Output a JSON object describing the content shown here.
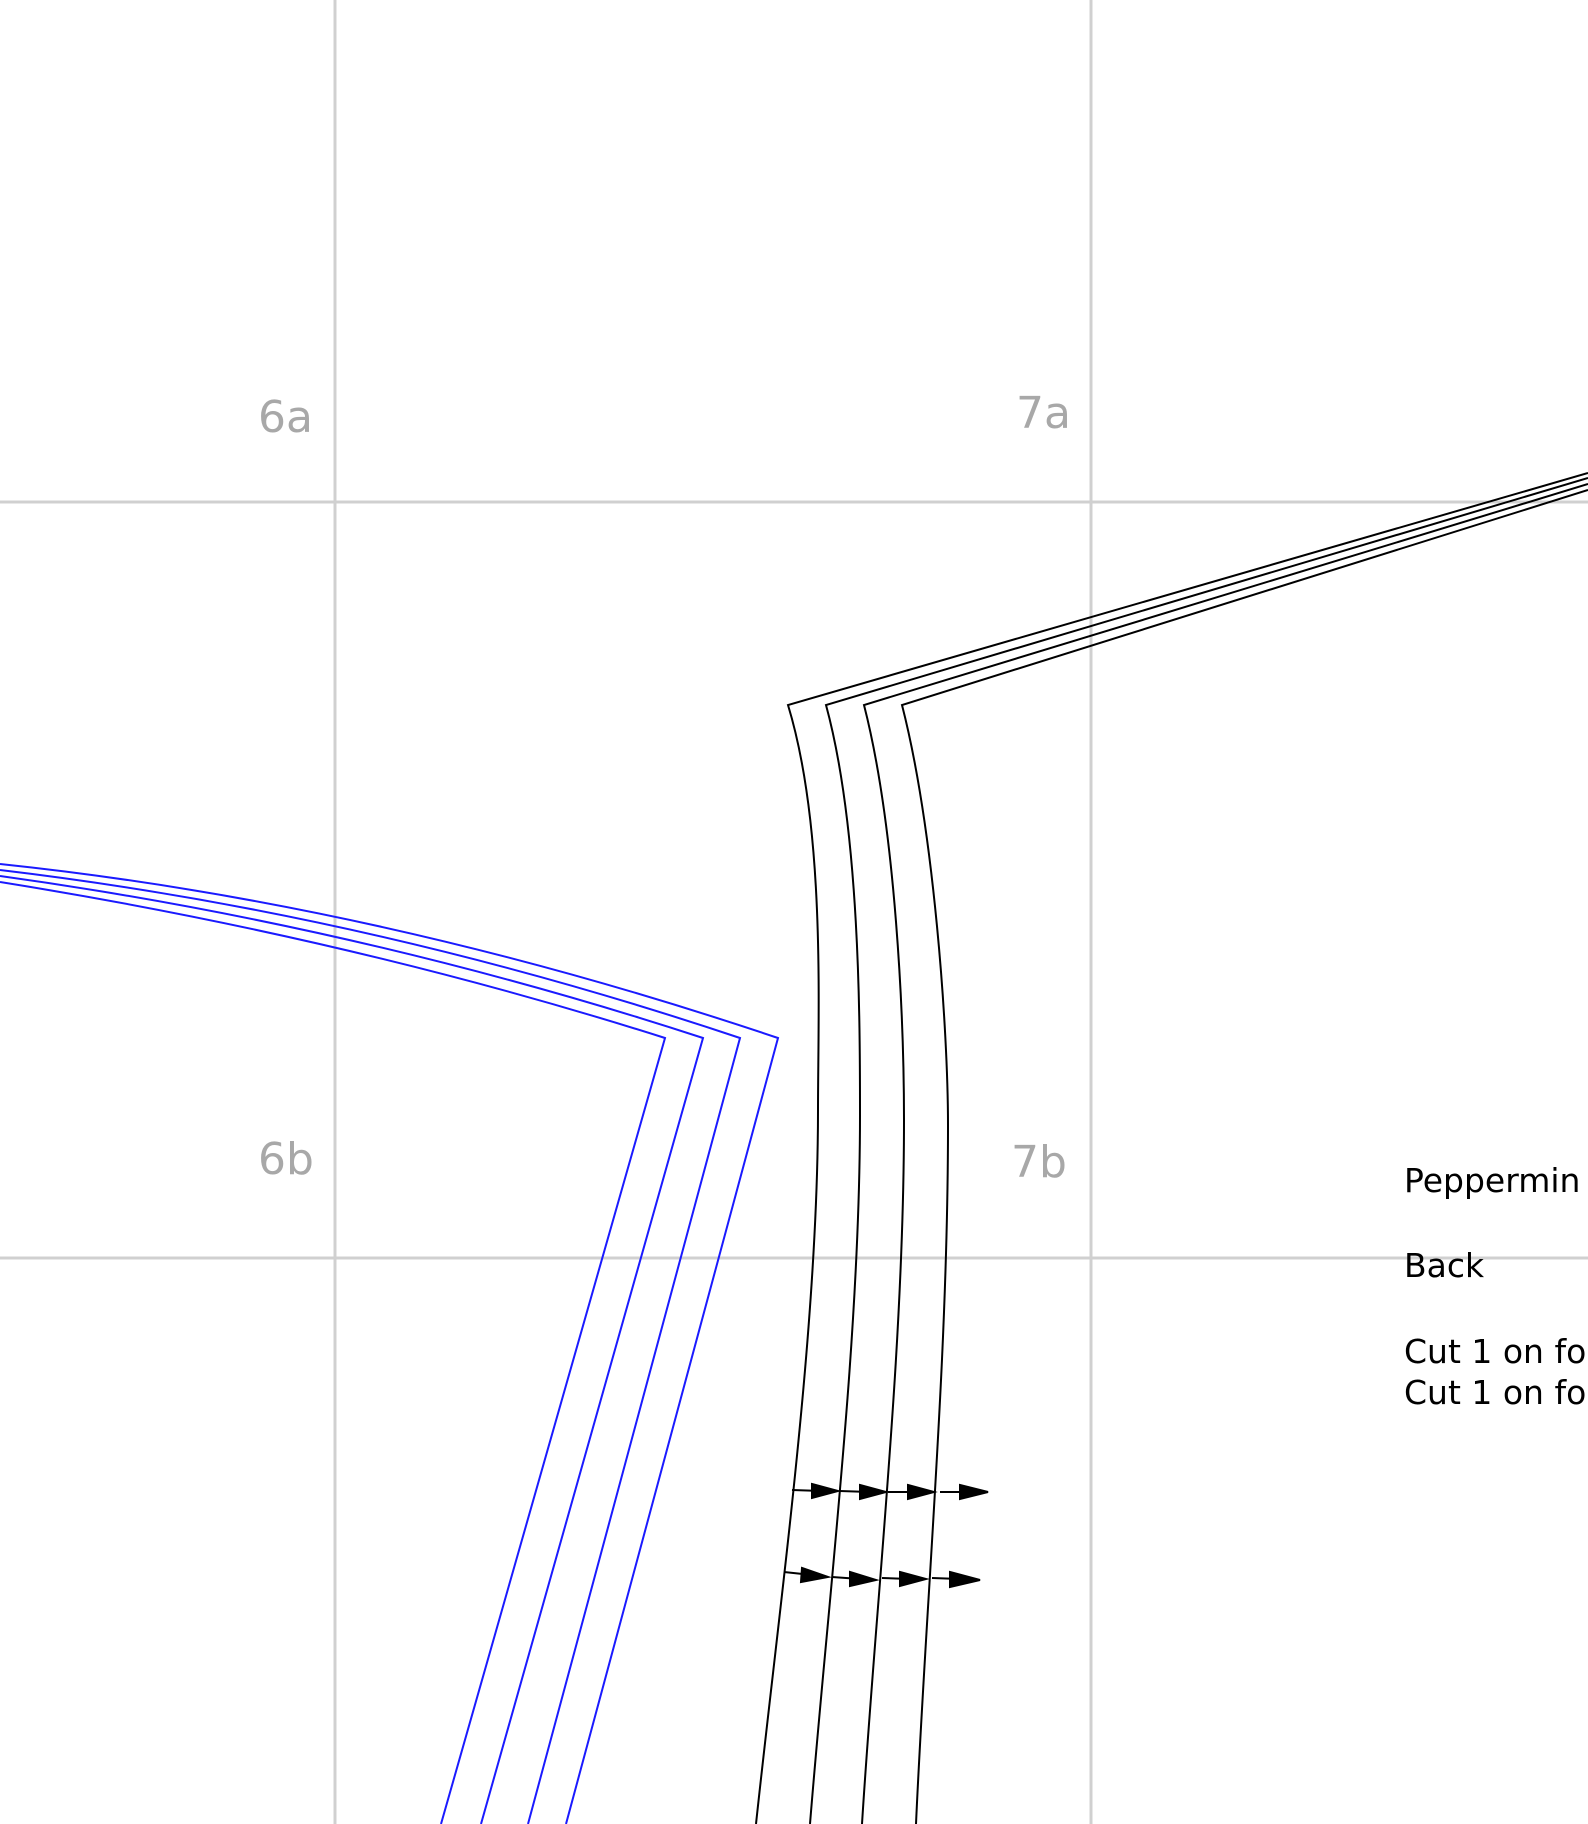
{
  "tiles": {
    "label_6a": "6a",
    "label_7a": "7a",
    "label_6b": "6b",
    "label_7b": "7b"
  },
  "piece_info": {
    "pattern_name": "Peppermin",
    "piece_name": "Back",
    "cut_line_1": "Cut 1 on fo",
    "cut_line_2": "Cut 1 on fo"
  },
  "colors": {
    "grid": "#d0d0d0",
    "tile_label": "#a8a8a8",
    "size_lines_blue": "#1a1aff",
    "size_lines_black": "#000000"
  }
}
